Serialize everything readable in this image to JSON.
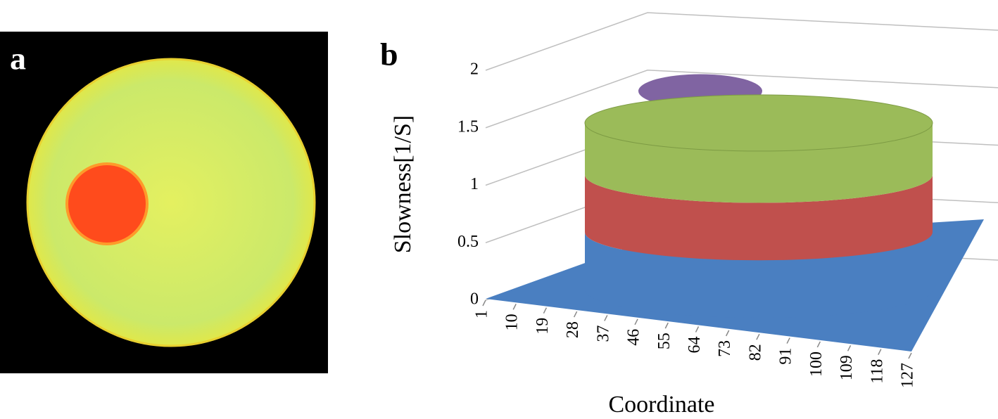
{
  "panels": [
    {
      "label": "a"
    },
    {
      "label": "b"
    }
  ],
  "chart_data": {
    "type": "surface3d",
    "xlabel": "Coordinate",
    "ylabel": "Slowness[1/S]",
    "xlim": [
      1,
      127
    ],
    "xticks": [
      1,
      10,
      19,
      28,
      37,
      46,
      55,
      64,
      73,
      82,
      91,
      100,
      109,
      118,
      127
    ],
    "ylim": [
      0,
      2
    ],
    "yticks": [
      0,
      0.5,
      1,
      1.5,
      2
    ],
    "levels": {
      "background": 0,
      "body": 1.45,
      "inclusion": 1.85
    },
    "band_colors": [
      "#4a7fc1",
      "#c0504d",
      "#9bbb59",
      "#8064a2"
    ],
    "grid": true
  }
}
